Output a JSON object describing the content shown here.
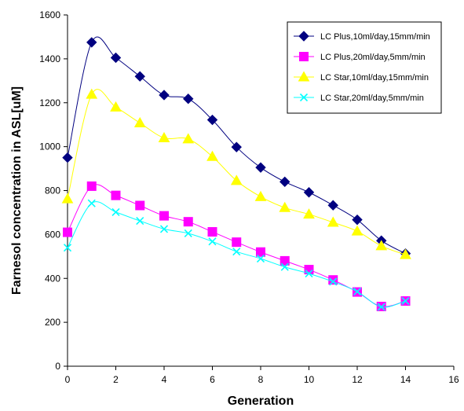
{
  "chart_data": {
    "type": "line",
    "title": "",
    "xlabel": "Generation",
    "ylabel": "Farnesol concentration in ASL[uM]",
    "xlim": [
      0,
      16
    ],
    "ylim": [
      0,
      1600
    ],
    "x_ticks": [
      0,
      2,
      4,
      6,
      8,
      10,
      12,
      14,
      16
    ],
    "y_ticks": [
      0,
      200,
      400,
      600,
      800,
      1000,
      1200,
      1400,
      1600
    ],
    "grid": false,
    "legend_position": "top-right",
    "smooth": true,
    "series": [
      {
        "name": "LC Plus,10ml/day,15mm/min",
        "color": "#000080",
        "marker": "diamond",
        "x": [
          0,
          1,
          2,
          3,
          4,
          5,
          6,
          7,
          8,
          9,
          10,
          11,
          12,
          13,
          14
        ],
        "y": [
          950,
          1475,
          1405,
          1320,
          1235,
          1218,
          1122,
          998,
          905,
          840,
          792,
          733,
          667,
          572,
          513
        ]
      },
      {
        "name": "LC Plus,20ml/day,5mm/min",
        "color": "#FF00FF",
        "marker": "square",
        "x": [
          0,
          1,
          2,
          3,
          4,
          5,
          6,
          7,
          8,
          9,
          10,
          11,
          12,
          13,
          14
        ],
        "y": [
          610,
          820,
          778,
          732,
          685,
          658,
          612,
          565,
          520,
          480,
          440,
          393,
          338,
          272,
          297
        ]
      },
      {
        "name": "LC Star,10ml/day,15mm/min",
        "color": "#FFFF00",
        "marker": "triangle",
        "x": [
          0,
          1,
          2,
          3,
          4,
          5,
          6,
          7,
          8,
          9,
          10,
          11,
          12,
          13,
          14
        ],
        "y": [
          762,
          1238,
          1180,
          1108,
          1040,
          1035,
          955,
          845,
          772,
          722,
          692,
          655,
          615,
          548,
          508
        ]
      },
      {
        "name": "LC Star,20ml/day,5mm/min",
        "color": "#00FFFF",
        "marker": "x",
        "x": [
          0,
          1,
          2,
          3,
          4,
          5,
          6,
          7,
          8,
          9,
          10,
          11,
          12,
          13,
          14
        ],
        "y": [
          540,
          742,
          702,
          662,
          625,
          605,
          568,
          522,
          490,
          452,
          422,
          385,
          340,
          270,
          297
        ]
      }
    ]
  }
}
